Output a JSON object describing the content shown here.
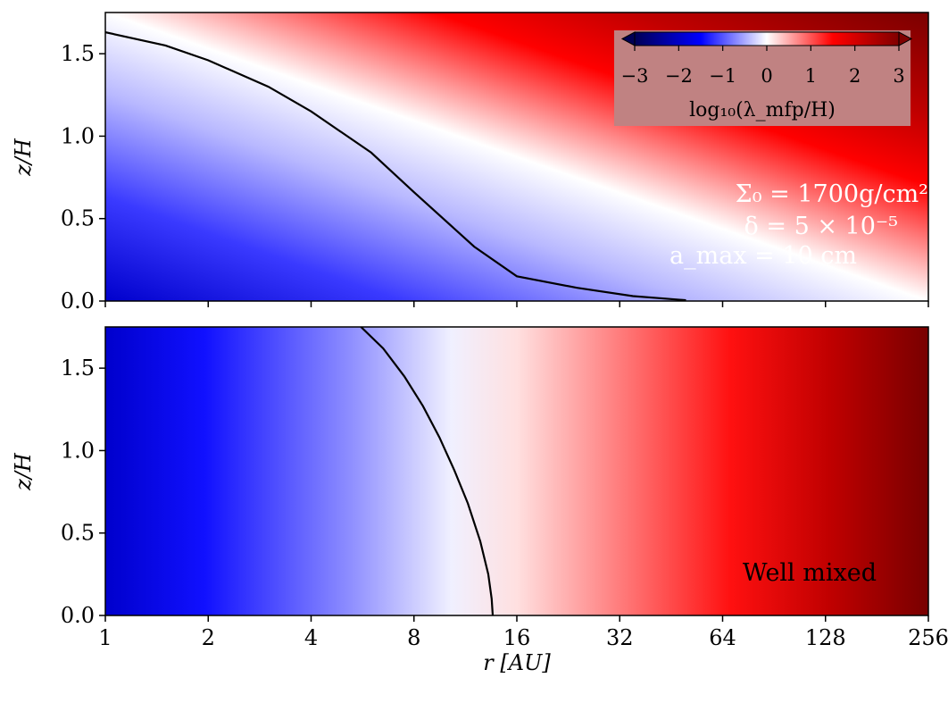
{
  "chart_data": [
    {
      "type": "heatmap",
      "panel": "top",
      "ylabel": "z/H",
      "xscale": "log2",
      "xlim": [
        1,
        256
      ],
      "ylim": [
        0,
        1.75
      ],
      "yticks": [
        "0.0",
        "0.5",
        "1.0",
        "1.5"
      ],
      "colormap": "seismic",
      "clim": [
        -3,
        3
      ],
      "contour_level": 0,
      "contour": {
        "x": [
          1,
          1.5,
          2,
          3,
          4,
          6,
          8,
          12,
          16,
          24,
          35,
          50
        ],
        "y": [
          1.63,
          1.55,
          1.46,
          1.3,
          1.15,
          0.9,
          0.66,
          0.33,
          0.15,
          0.08,
          0.03,
          0.005
        ]
      },
      "annotations": [
        "Σ₀ = 1700g/cm²",
        "δ = 5 × 10⁻⁵",
        "a_max = 10 cm"
      ]
    },
    {
      "type": "heatmap",
      "panel": "bottom",
      "ylabel": "z/H",
      "xlabel": "r [AU]",
      "xscale": "log2",
      "xlim": [
        1,
        256
      ],
      "ylim": [
        0,
        1.75
      ],
      "xticks": [
        "1",
        "2",
        "4",
        "8",
        "16",
        "32",
        "64",
        "128",
        "256"
      ],
      "yticks": [
        "0.0",
        "0.5",
        "1.0",
        "1.5"
      ],
      "colormap": "seismic",
      "clim": [
        -3,
        3
      ],
      "contour_level": 0,
      "contour": {
        "x": [
          5.6,
          6.5,
          7.5,
          8.5,
          9.5,
          10.5,
          11.5,
          12.5,
          13.2,
          13.5,
          13.6
        ],
        "y": [
          1.75,
          1.62,
          1.45,
          1.27,
          1.08,
          0.88,
          0.68,
          0.45,
          0.25,
          0.1,
          0.0
        ]
      },
      "annotations": [
        "Well mixed"
      ]
    }
  ],
  "colorbar": {
    "label": "log₁₀(λ_mfp/H)",
    "ticks": [
      "−3",
      "−2",
      "−1",
      "0",
      "1",
      "2",
      "3"
    ],
    "extend": "both",
    "colors": {
      "dark_blue": "#000055",
      "blue": "#0000ff",
      "white": "#ffffff",
      "red": "#ff0000",
      "dark_red": "#800000"
    }
  }
}
